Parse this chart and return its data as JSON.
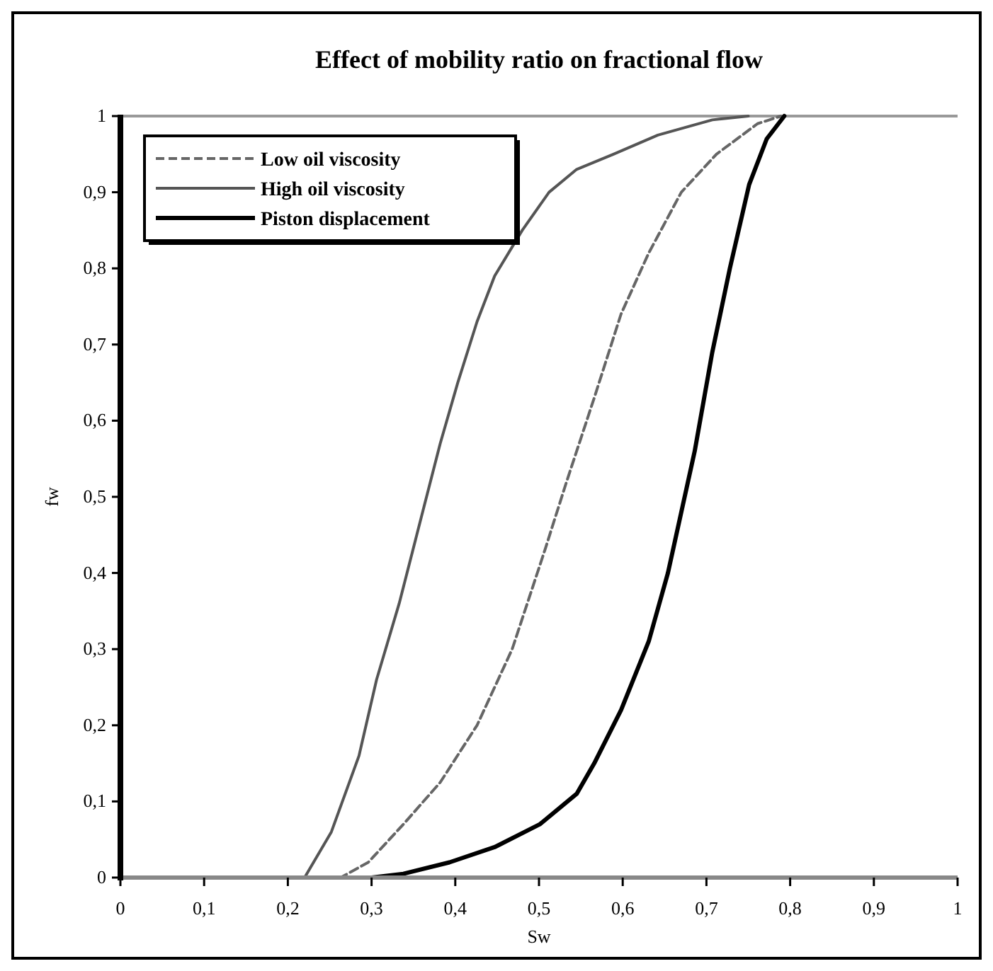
{
  "chart_data": {
    "type": "line",
    "title": "Effect of mobility ratio on fractional flow",
    "xlabel": "Sw",
    "ylabel": "fw",
    "xlim": [
      0,
      1
    ],
    "ylim": [
      0,
      1
    ],
    "xticks": [
      0,
      {
        "value": 0.1,
        "label": "0,1"
      },
      {
        "value": 0.2,
        "label": "0,2"
      },
      {
        "value": 0.3,
        "label": "0,3"
      },
      {
        "value": 0.4,
        "label": "0,4"
      },
      {
        "value": 0.5,
        "label": "0,5"
      },
      {
        "value": 0.6,
        "label": "0,6"
      },
      {
        "value": 0.7,
        "label": "0,7"
      },
      {
        "value": 0.8,
        "label": "0,8"
      },
      {
        "value": 0.9,
        "label": "0,9"
      },
      1
    ],
    "yticks": [
      0,
      {
        "value": 0.1,
        "label": "0,1"
      },
      {
        "value": 0.2,
        "label": "0,2"
      },
      {
        "value": 0.3,
        "label": "0,3"
      },
      {
        "value": 0.4,
        "label": "0,4"
      },
      {
        "value": 0.5,
        "label": "0,5"
      },
      {
        "value": 0.6,
        "label": "0,6"
      },
      {
        "value": 0.7,
        "label": "0,7"
      },
      {
        "value": 0.8,
        "label": "0,8"
      },
      {
        "value": 0.9,
        "label": "0,9"
      },
      1
    ],
    "grid": false,
    "legend": "top left",
    "marker": "none",
    "series": [
      {
        "name": "Low oil viscosity",
        "color": "#666666",
        "line_style": "dashed",
        "x": [
          0.2,
          0.263,
          0.296,
          0.338,
          0.382,
          0.426,
          0.468,
          0.507,
          0.533,
          0.566,
          0.598,
          0.631,
          0.67,
          0.712,
          0.761,
          0.789
        ],
        "values": [
          0,
          0,
          0.02,
          0.07,
          0.125,
          0.2,
          0.3,
          0.43,
          0.52,
          0.63,
          0.74,
          0.82,
          0.9,
          0.95,
          0.99,
          1
        ]
      },
      {
        "name": "High oil viscosity",
        "color": "#555555",
        "line_style": "solid",
        "x": [
          0.2,
          0.22,
          0.252,
          0.285,
          0.306,
          0.333,
          0.354,
          0.382,
          0.403,
          0.426,
          0.447,
          0.48,
          0.512,
          0.545,
          0.589,
          0.642,
          0.707,
          0.75
        ],
        "values": [
          0,
          0,
          0.06,
          0.16,
          0.26,
          0.36,
          0.45,
          0.57,
          0.65,
          0.73,
          0.79,
          0.85,
          0.9,
          0.93,
          0.95,
          0.975,
          0.995,
          1
        ]
      },
      {
        "name": "Piston displacement",
        "color": "#000000",
        "line_style": "solid",
        "x": [
          0.2,
          0.3,
          0.338,
          0.393,
          0.447,
          0.501,
          0.545,
          0.566,
          0.598,
          0.631,
          0.654,
          0.686,
          0.707,
          0.728,
          0.751,
          0.772,
          0.793
        ],
        "values": [
          0,
          0,
          0.005,
          0.02,
          0.04,
          0.07,
          0.11,
          0.15,
          0.22,
          0.31,
          0.4,
          0.56,
          0.69,
          0.8,
          0.91,
          0.97,
          1
        ]
      }
    ]
  }
}
